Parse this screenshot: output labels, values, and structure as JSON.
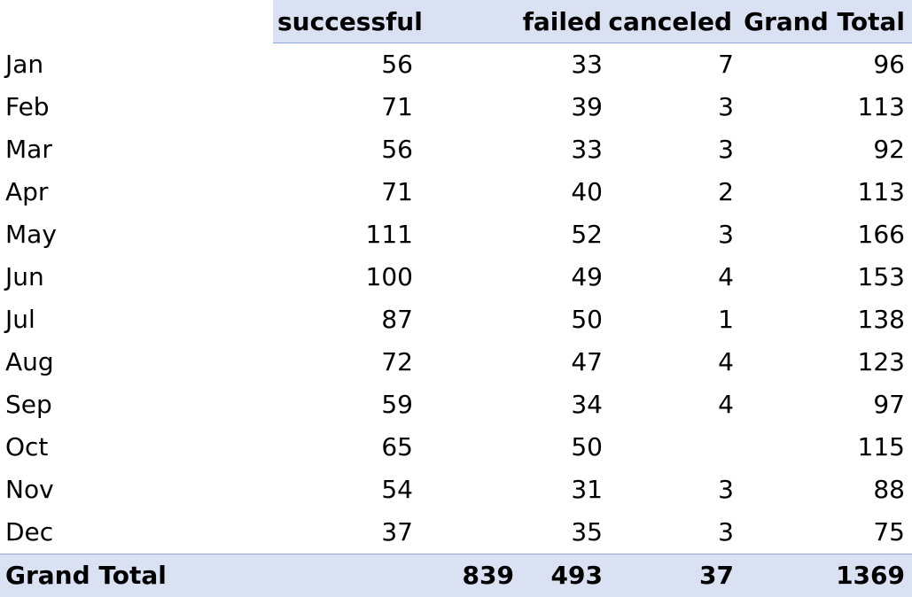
{
  "table": {
    "headers": {
      "successful": "successful",
      "failed": "failed",
      "canceled": "canceled",
      "grand_total": "Grand Total"
    },
    "rows": [
      {
        "label": "Jan",
        "successful": "56",
        "failed": "33",
        "canceled": "7",
        "total": "96"
      },
      {
        "label": "Feb",
        "successful": "71",
        "failed": "39",
        "canceled": "3",
        "total": "113"
      },
      {
        "label": "Mar",
        "successful": "56",
        "failed": "33",
        "canceled": "3",
        "total": "92"
      },
      {
        "label": "Apr",
        "successful": "71",
        "failed": "40",
        "canceled": "2",
        "total": "113"
      },
      {
        "label": "May",
        "successful": "111",
        "failed": "52",
        "canceled": "3",
        "total": "166"
      },
      {
        "label": "Jun",
        "successful": "100",
        "failed": "49",
        "canceled": "4",
        "total": "153"
      },
      {
        "label": "Jul",
        "successful": "87",
        "failed": "50",
        "canceled": "1",
        "total": "138"
      },
      {
        "label": "Aug",
        "successful": "72",
        "failed": "47",
        "canceled": "4",
        "total": "123"
      },
      {
        "label": "Sep",
        "successful": "59",
        "failed": "34",
        "canceled": "4",
        "total": "97"
      },
      {
        "label": "Oct",
        "successful": "65",
        "failed": "50",
        "canceled": "",
        "total": "115"
      },
      {
        "label": "Nov",
        "successful": "54",
        "failed": "31",
        "canceled": "3",
        "total": "88"
      },
      {
        "label": "Dec",
        "successful": "37",
        "failed": "35",
        "canceled": "3",
        "total": "75"
      }
    ],
    "grand_total": {
      "label": "Grand Total",
      "successful": "839",
      "failed": "493",
      "canceled": "37",
      "total": "1369"
    }
  },
  "colors": {
    "header_fill": "#d9e1f2",
    "header_border": "#8ea9db"
  }
}
